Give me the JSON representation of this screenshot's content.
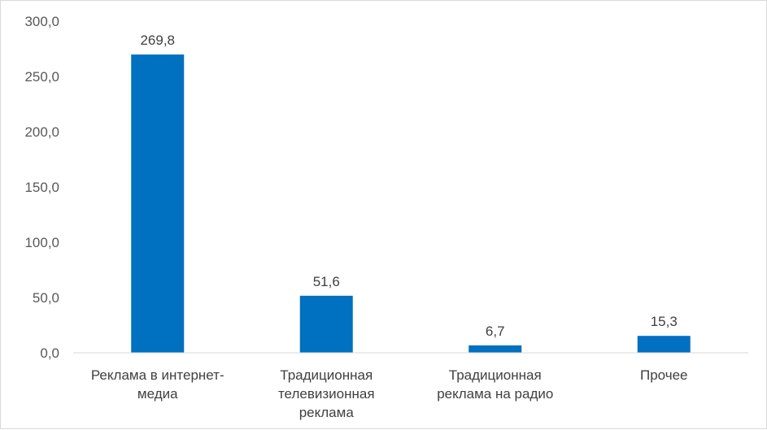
{
  "chart_data": {
    "type": "bar",
    "categories": [
      [
        "Реклама в интернет-",
        "медиа"
      ],
      [
        "Традиционная",
        "телевизионная",
        "реклама"
      ],
      [
        "Традиционная",
        "реклама на радио"
      ],
      [
        "Прочее"
      ]
    ],
    "values": [
      269.8,
      51.6,
      6.7,
      15.3
    ],
    "value_labels": [
      "269,8",
      "51,6",
      "6,7",
      "15,3"
    ],
    "ylim": [
      0,
      300
    ],
    "y_ticks": [
      "0,0",
      "50,0",
      "100,0",
      "150,0",
      "200,0",
      "250,0",
      "300,0"
    ],
    "y_tick_values": [
      0,
      50,
      100,
      150,
      200,
      250,
      300
    ],
    "title": "",
    "xlabel": "",
    "ylabel": "",
    "grid": false,
    "bar_color": "#0070C0"
  }
}
